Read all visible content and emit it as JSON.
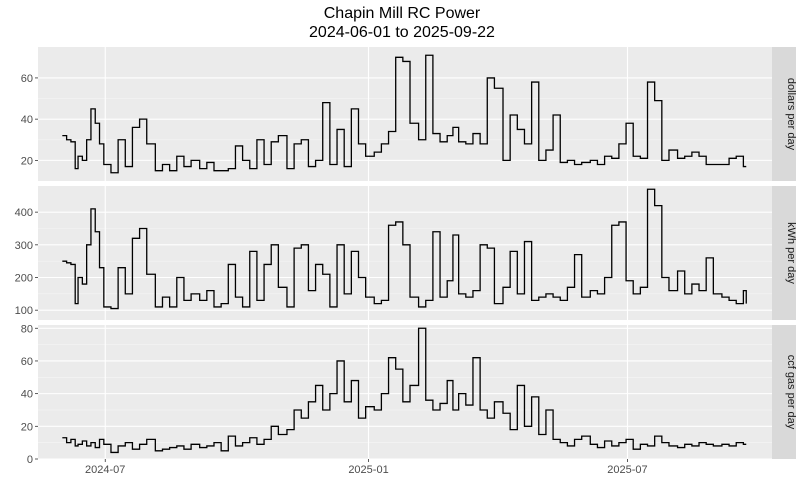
{
  "title": "Chapin Mill RC Power",
  "subtitle": "2024-06-01 to 2025-09-22",
  "colors": {
    "panel": "#ebebeb",
    "strip": "#d9d9d9",
    "grid_major": "#ffffff",
    "line": "#000000",
    "tick_text": "#4d4d4d"
  },
  "chart_data": {
    "type": "line",
    "facet": "rows",
    "grid": true,
    "x_label_dates": [
      "2024-07",
      "2025-01",
      "2025-07"
    ],
    "x_range": [
      "2024-05-15",
      "2025-10-10"
    ],
    "panels": [
      {
        "strip": "dollars per day",
        "y_ticks": [
          20,
          40,
          60
        ],
        "ylim": [
          10,
          75
        ],
        "series": {
          "x": [
            "2024-06-01",
            "2024-06-04",
            "2024-06-07",
            "2024-06-10",
            "2024-06-12",
            "2024-06-15",
            "2024-06-18",
            "2024-06-21",
            "2024-06-24",
            "2024-06-27",
            "2024-06-30",
            "2024-07-05",
            "2024-07-10",
            "2024-07-15",
            "2024-07-20",
            "2024-07-25",
            "2024-07-30",
            "2024-08-05",
            "2024-08-10",
            "2024-08-15",
            "2024-08-20",
            "2024-08-25",
            "2024-08-30",
            "2024-09-05",
            "2024-09-10",
            "2024-09-15",
            "2024-09-20",
            "2024-09-25",
            "2024-09-30",
            "2024-10-05",
            "2024-10-10",
            "2024-10-15",
            "2024-10-20",
            "2024-10-25",
            "2024-10-30",
            "2024-11-05",
            "2024-11-10",
            "2024-11-15",
            "2024-11-20",
            "2024-11-25",
            "2024-11-30",
            "2024-12-05",
            "2024-12-10",
            "2024-12-15",
            "2024-12-20",
            "2024-12-25",
            "2024-12-30",
            "2025-01-05",
            "2025-01-10",
            "2025-01-15",
            "2025-01-20",
            "2025-01-25",
            "2025-01-30",
            "2025-02-05",
            "2025-02-10",
            "2025-02-15",
            "2025-02-20",
            "2025-02-25",
            "2025-03-01",
            "2025-03-05",
            "2025-03-10",
            "2025-03-15",
            "2025-03-20",
            "2025-03-25",
            "2025-03-30",
            "2025-04-05",
            "2025-04-10",
            "2025-04-15",
            "2025-04-20",
            "2025-04-25",
            "2025-04-30",
            "2025-05-05",
            "2025-05-10",
            "2025-05-15",
            "2025-05-20",
            "2025-05-25",
            "2025-05-30",
            "2025-06-05",
            "2025-06-10",
            "2025-06-15",
            "2025-06-20",
            "2025-06-25",
            "2025-06-30",
            "2025-07-05",
            "2025-07-10",
            "2025-07-15",
            "2025-07-20",
            "2025-07-25",
            "2025-07-30",
            "2025-08-05",
            "2025-08-10",
            "2025-08-15",
            "2025-08-20",
            "2025-08-25",
            "2025-08-30",
            "2025-09-05",
            "2025-09-10",
            "2025-09-15",
            "2025-09-20",
            "2025-09-22"
          ],
          "y": [
            32,
            30,
            29,
            16,
            22,
            20,
            30,
            45,
            38,
            28,
            18,
            14,
            30,
            17,
            36,
            40,
            28,
            15,
            18,
            15,
            22,
            17,
            20,
            16,
            19,
            15,
            15,
            16,
            27,
            20,
            16,
            30,
            18,
            29,
            32,
            16,
            28,
            30,
            17,
            20,
            48,
            18,
            35,
            17,
            45,
            28,
            22,
            24,
            28,
            34,
            70,
            68,
            38,
            30,
            71,
            33,
            29,
            32,
            36,
            29,
            28,
            33,
            28,
            60,
            55,
            20,
            42,
            35,
            28,
            58,
            20,
            25,
            42,
            19,
            20,
            18,
            19,
            20,
            18,
            22,
            21,
            28,
            38,
            22,
            21,
            58,
            49,
            20,
            25,
            21,
            22,
            24,
            22,
            18,
            18,
            18,
            21,
            22,
            17,
            17
          ]
        }
      },
      {
        "strip": "kWh per day",
        "y_ticks": [
          100,
          200,
          300,
          400
        ],
        "ylim": [
          70,
          480
        ],
        "series": {
          "x": [
            "2024-06-01",
            "2024-06-04",
            "2024-06-07",
            "2024-06-10",
            "2024-06-12",
            "2024-06-15",
            "2024-06-18",
            "2024-06-21",
            "2024-06-24",
            "2024-06-27",
            "2024-06-30",
            "2024-07-05",
            "2024-07-10",
            "2024-07-15",
            "2024-07-20",
            "2024-07-25",
            "2024-07-30",
            "2024-08-05",
            "2024-08-10",
            "2024-08-15",
            "2024-08-20",
            "2024-08-25",
            "2024-08-30",
            "2024-09-05",
            "2024-09-10",
            "2024-09-15",
            "2024-09-20",
            "2024-09-25",
            "2024-09-30",
            "2024-10-05",
            "2024-10-10",
            "2024-10-15",
            "2024-10-20",
            "2024-10-25",
            "2024-10-30",
            "2024-11-05",
            "2024-11-10",
            "2024-11-15",
            "2024-11-20",
            "2024-11-25",
            "2024-11-30",
            "2024-12-05",
            "2024-12-10",
            "2024-12-15",
            "2024-12-20",
            "2024-12-25",
            "2024-12-30",
            "2025-01-05",
            "2025-01-10",
            "2025-01-15",
            "2025-01-20",
            "2025-01-25",
            "2025-01-30",
            "2025-02-05",
            "2025-02-10",
            "2025-02-15",
            "2025-02-20",
            "2025-02-25",
            "2025-03-01",
            "2025-03-05",
            "2025-03-10",
            "2025-03-15",
            "2025-03-20",
            "2025-03-25",
            "2025-03-30",
            "2025-04-05",
            "2025-04-10",
            "2025-04-15",
            "2025-04-20",
            "2025-04-25",
            "2025-04-30",
            "2025-05-05",
            "2025-05-10",
            "2025-05-15",
            "2025-05-20",
            "2025-05-25",
            "2025-05-30",
            "2025-06-05",
            "2025-06-10",
            "2025-06-15",
            "2025-06-20",
            "2025-06-25",
            "2025-06-30",
            "2025-07-05",
            "2025-07-10",
            "2025-07-15",
            "2025-07-20",
            "2025-07-25",
            "2025-07-30",
            "2025-08-05",
            "2025-08-10",
            "2025-08-15",
            "2025-08-20",
            "2025-08-25",
            "2025-08-30",
            "2025-09-05",
            "2025-09-10",
            "2025-09-15",
            "2025-09-20",
            "2025-09-22"
          ],
          "y": [
            250,
            245,
            240,
            120,
            200,
            180,
            300,
            410,
            340,
            230,
            110,
            105,
            230,
            150,
            320,
            350,
            210,
            110,
            140,
            110,
            200,
            130,
            150,
            130,
            160,
            110,
            120,
            240,
            140,
            110,
            280,
            130,
            240,
            300,
            170,
            110,
            290,
            300,
            160,
            240,
            210,
            110,
            300,
            150,
            280,
            200,
            140,
            120,
            130,
            360,
            370,
            300,
            140,
            110,
            130,
            340,
            140,
            190,
            330,
            150,
            140,
            160,
            300,
            290,
            120,
            170,
            280,
            150,
            310,
            130,
            140,
            150,
            140,
            130,
            170,
            270,
            140,
            160,
            150,
            200,
            360,
            370,
            190,
            150,
            170,
            470,
            420,
            200,
            160,
            220,
            150,
            180,
            160,
            260,
            150,
            140,
            130,
            120,
            160,
            120
          ]
        }
      },
      {
        "strip": "ccf gas per day",
        "y_ticks": [
          0,
          20,
          40,
          60,
          80
        ],
        "ylim": [
          0,
          82
        ],
        "series": {
          "x": [
            "2024-06-01",
            "2024-06-04",
            "2024-06-07",
            "2024-06-10",
            "2024-06-12",
            "2024-06-15",
            "2024-06-18",
            "2024-06-21",
            "2024-06-24",
            "2024-06-27",
            "2024-06-30",
            "2024-07-05",
            "2024-07-10",
            "2024-07-15",
            "2024-07-20",
            "2024-07-25",
            "2024-07-30",
            "2024-08-05",
            "2024-08-10",
            "2024-08-15",
            "2024-08-20",
            "2024-08-25",
            "2024-08-30",
            "2024-09-05",
            "2024-09-10",
            "2024-09-15",
            "2024-09-20",
            "2024-09-25",
            "2024-09-30",
            "2024-10-05",
            "2024-10-10",
            "2024-10-15",
            "2024-10-20",
            "2024-10-25",
            "2024-10-30",
            "2024-11-05",
            "2024-11-10",
            "2024-11-15",
            "2024-11-20",
            "2024-11-25",
            "2024-11-30",
            "2024-12-05",
            "2024-12-10",
            "2024-12-15",
            "2024-12-20",
            "2024-12-25",
            "2024-12-30",
            "2025-01-05",
            "2025-01-10",
            "2025-01-15",
            "2025-01-20",
            "2025-01-25",
            "2025-01-30",
            "2025-02-05",
            "2025-02-10",
            "2025-02-15",
            "2025-02-20",
            "2025-02-25",
            "2025-03-01",
            "2025-03-05",
            "2025-03-10",
            "2025-03-15",
            "2025-03-20",
            "2025-03-25",
            "2025-03-30",
            "2025-04-05",
            "2025-04-10",
            "2025-04-15",
            "2025-04-20",
            "2025-04-25",
            "2025-04-30",
            "2025-05-05",
            "2025-05-10",
            "2025-05-15",
            "2025-05-20",
            "2025-05-25",
            "2025-05-30",
            "2025-06-05",
            "2025-06-10",
            "2025-06-15",
            "2025-06-20",
            "2025-06-25",
            "2025-06-30",
            "2025-07-05",
            "2025-07-10",
            "2025-07-15",
            "2025-07-20",
            "2025-07-25",
            "2025-07-30",
            "2025-08-05",
            "2025-08-10",
            "2025-08-15",
            "2025-08-20",
            "2025-08-25",
            "2025-08-30",
            "2025-09-05",
            "2025-09-10",
            "2025-09-15",
            "2025-09-20",
            "2025-09-22"
          ],
          "y": [
            13,
            10,
            12,
            8,
            9,
            11,
            8,
            10,
            7,
            12,
            9,
            4,
            8,
            10,
            6,
            9,
            12,
            5,
            6,
            7,
            8,
            6,
            9,
            7,
            8,
            10,
            5,
            14,
            8,
            10,
            13,
            9,
            12,
            20,
            15,
            18,
            30,
            25,
            35,
            45,
            30,
            40,
            60,
            35,
            48,
            25,
            32,
            30,
            40,
            62,
            55,
            35,
            45,
            80,
            36,
            30,
            34,
            48,
            30,
            40,
            33,
            62,
            30,
            25,
            35,
            28,
            18,
            45,
            20,
            38,
            15,
            30,
            12,
            10,
            8,
            12,
            14,
            9,
            7,
            11,
            8,
            10,
            12,
            6,
            9,
            8,
            14,
            10,
            8,
            7,
            9,
            8,
            10,
            9,
            8,
            9,
            8,
            10,
            9,
            9
          ]
        }
      }
    ]
  }
}
